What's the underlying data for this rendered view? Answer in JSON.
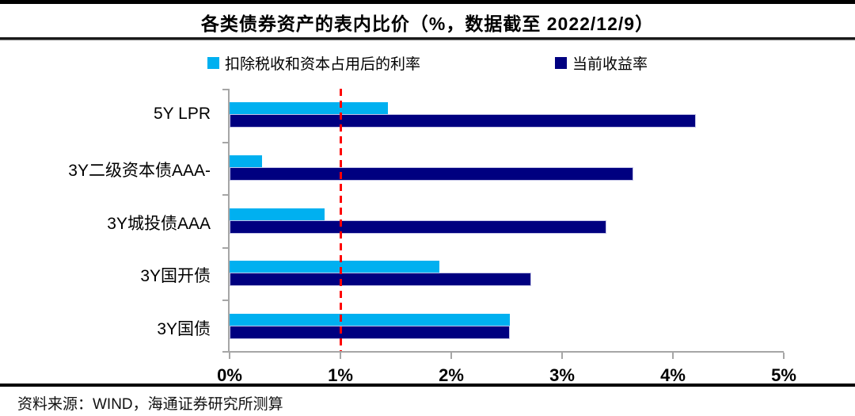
{
  "header": {
    "title": "各类债券资产的表内比价（%，数据截至 2022/12/9）"
  },
  "footer": {
    "source": "资料来源：WIND，海通证券研究所测算"
  },
  "colors": {
    "series_light": "#00B0F0",
    "series_dark": "#000080",
    "reference_line": "#FF0000",
    "axis": "#A6A6A6"
  },
  "chart_data": {
    "type": "bar",
    "orientation": "horizontal",
    "title": "各类债券资产的表内比价（%，数据截至 2022/12/9）",
    "categories": [
      "5Y LPR",
      "3Y二级资本债AAA-",
      "3Y城投债AAA",
      "3Y国开债",
      "3Y国债"
    ],
    "series": [
      {
        "name": "扣除税收和资本占用后的利率",
        "color": "#00B0F0",
        "values": [
          1.43,
          0.29,
          0.86,
          1.89,
          2.53
        ]
      },
      {
        "name": "当前收益率",
        "color": "#000080",
        "values": [
          4.21,
          3.64,
          3.4,
          2.72,
          2.53
        ]
      }
    ],
    "xlabel": "",
    "ylabel": "",
    "xlim": [
      0,
      5
    ],
    "x_ticks": [
      "0%",
      "1%",
      "2%",
      "3%",
      "4%",
      "5%"
    ],
    "x_tick_values": [
      0,
      1,
      2,
      3,
      4,
      5
    ],
    "reference_line": {
      "value": 1,
      "color": "#FF0000",
      "style": "dashed"
    },
    "legend_position": "top-center",
    "grid": false
  }
}
